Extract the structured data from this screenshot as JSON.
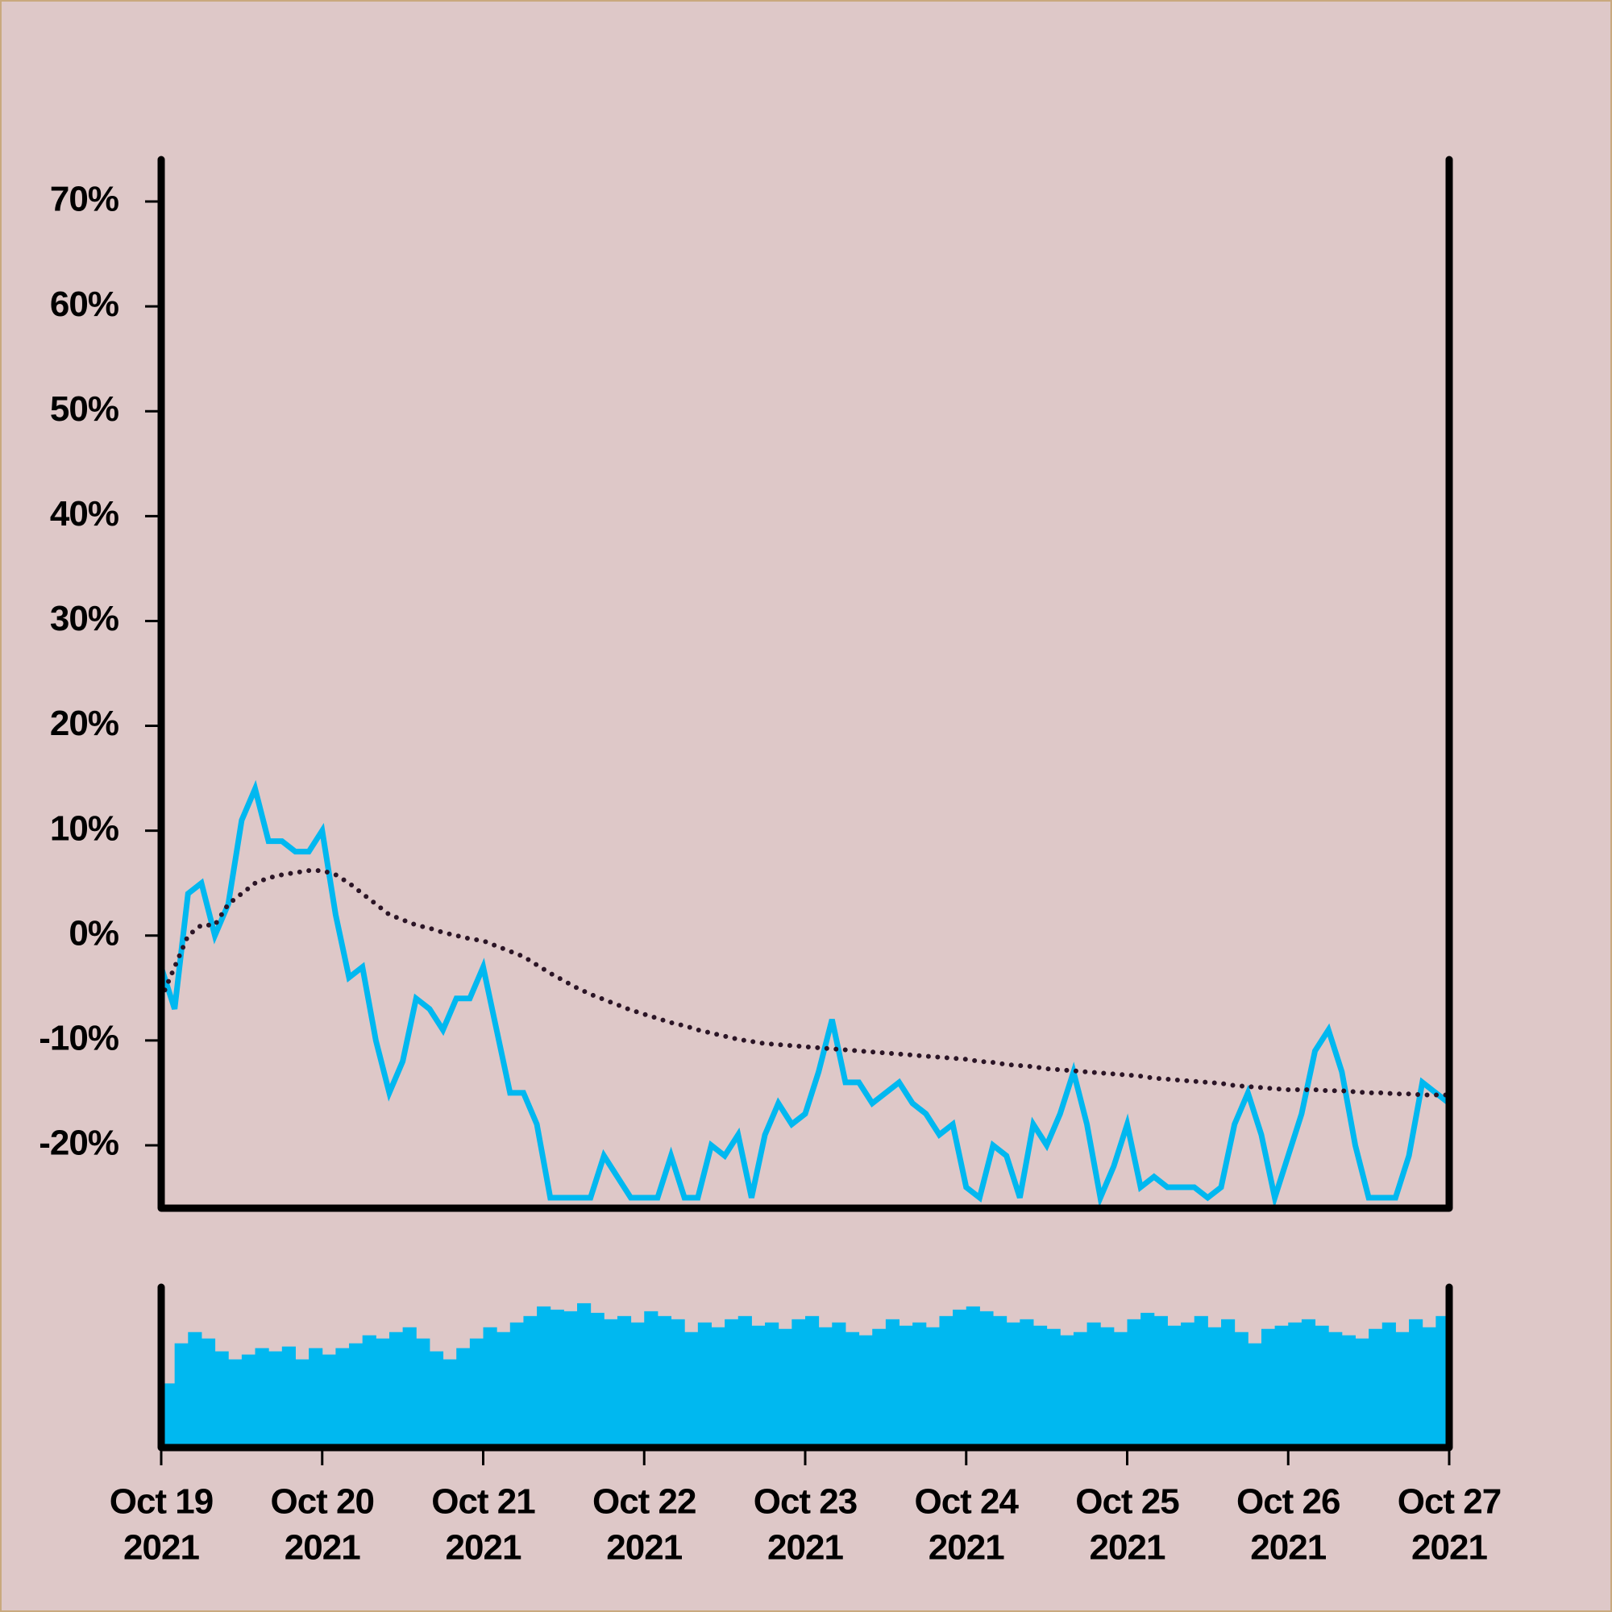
{
  "chart_data": [
    {
      "type": "line",
      "x": [
        0,
        2,
        4,
        6,
        8,
        10,
        12,
        14,
        16,
        18,
        20,
        22,
        24,
        26,
        28,
        30,
        32,
        34,
        36,
        38,
        40,
        42,
        44,
        46,
        48,
        50,
        52,
        54,
        56,
        58,
        60,
        62,
        64,
        66,
        68,
        70,
        72,
        74,
        76,
        78,
        80,
        82,
        84,
        86,
        88,
        90,
        92,
        94,
        96,
        98,
        100,
        102,
        104,
        106,
        108,
        110,
        112,
        114,
        116,
        118,
        120,
        122,
        124,
        126,
        128,
        130,
        132,
        134,
        136,
        138,
        140,
        142,
        144,
        146,
        148,
        150,
        152,
        154,
        156,
        158,
        160,
        162,
        164,
        166,
        168,
        170,
        172,
        174,
        176,
        178,
        180,
        182,
        184,
        186,
        188,
        190,
        192
      ],
      "xlim": [
        0,
        192
      ],
      "ylim": [
        -26,
        74
      ],
      "yticks": [
        {
          "value": -20,
          "label": "-20%"
        },
        {
          "value": -10,
          "label": "-10%"
        },
        {
          "value": 0,
          "label": "0%"
        },
        {
          "value": 10,
          "label": "10%"
        },
        {
          "value": 20,
          "label": "20%"
        },
        {
          "value": 30,
          "label": "30%"
        },
        {
          "value": 40,
          "label": "40%"
        },
        {
          "value": 50,
          "label": "50%"
        },
        {
          "value": 60,
          "label": "60%"
        },
        {
          "value": 70,
          "label": "70%"
        }
      ],
      "series": [
        {
          "color": "#00b8f0",
          "line_style": "solid",
          "values": [
            -3,
            -7,
            4,
            5,
            0,
            3,
            11,
            14,
            9,
            9,
            8,
            8,
            10,
            2,
            -4,
            -3,
            -10,
            -15,
            -12,
            -6,
            -7,
            -9,
            -6,
            -6,
            -3,
            -9,
            -15,
            -15,
            -18,
            -25,
            -25,
            -25,
            -25,
            -21,
            -23,
            -25,
            -25,
            -25,
            -21,
            -25,
            -25,
            -20,
            -21,
            -19,
            -25,
            -19,
            -16,
            -18,
            -17,
            -13,
            -8,
            -14,
            -14,
            -16,
            -15,
            -14,
            -16,
            -17,
            -19,
            -18,
            -24,
            -25,
            -20,
            -21,
            -25,
            -18,
            -20,
            -17,
            -13,
            -18,
            -25,
            -22,
            -18,
            -24,
            -23,
            -24,
            -24,
            -24,
            -25,
            -24,
            -18,
            -15,
            -19,
            -25,
            -21,
            -17,
            -11,
            -9,
            -13,
            -20,
            -25,
            -25,
            -25,
            -21,
            -14,
            -15,
            -16
          ]
        },
        {
          "color": "#2b1526",
          "line_style": "dotted",
          "values": [
            -6,
            -3,
            0,
            1,
            1,
            3,
            4,
            5,
            5.5,
            5.8,
            6,
            6.2,
            6.2,
            5.8,
            5,
            4,
            3,
            2,
            1.5,
            1,
            0.7,
            0.3,
            0,
            -0.3,
            -0.5,
            -1,
            -1.5,
            -2,
            -2.8,
            -3.6,
            -4.3,
            -5,
            -5.6,
            -6.1,
            -6.6,
            -7.1,
            -7.5,
            -7.9,
            -8.3,
            -8.6,
            -9,
            -9.3,
            -9.6,
            -9.9,
            -10.1,
            -10.3,
            -10.4,
            -10.5,
            -10.6,
            -10.7,
            -10.8,
            -10.9,
            -11,
            -11.1,
            -11.2,
            -11.3,
            -11.4,
            -11.5,
            -11.6,
            -11.7,
            -11.8,
            -12,
            -12.1,
            -12.3,
            -12.4,
            -12.5,
            -12.7,
            -12.8,
            -12.9,
            -13,
            -13.1,
            -13.2,
            -13.3,
            -13.4,
            -13.6,
            -13.7,
            -13.8,
            -13.9,
            -14,
            -14.1,
            -14.3,
            -14.4,
            -14.5,
            -14.6,
            -14.7,
            -14.7,
            -14.7,
            -14.8,
            -14.8,
            -14.9,
            -15,
            -15,
            -15.1,
            -15.1,
            -15.2,
            -15.2,
            -15.2
          ]
        }
      ]
    },
    {
      "type": "bar",
      "color": "#00b8f0",
      "ylim": [
        0,
        100
      ],
      "values": [
        40,
        65,
        72,
        68,
        60,
        55,
        58,
        62,
        60,
        63,
        55,
        62,
        58,
        62,
        65,
        70,
        68,
        72,
        75,
        68,
        60,
        55,
        62,
        68,
        75,
        72,
        78,
        82,
        88,
        86,
        85,
        90,
        84,
        80,
        82,
        78,
        85,
        82,
        80,
        72,
        78,
        75,
        80,
        82,
        76,
        78,
        74,
        80,
        82,
        75,
        78,
        72,
        70,
        74,
        80,
        76,
        78,
        75,
        82,
        86,
        88,
        85,
        82,
        78,
        80,
        76,
        74,
        70,
        72,
        78,
        75,
        72,
        80,
        84,
        82,
        76,
        78,
        82,
        75,
        80,
        72,
        65,
        74,
        76,
        78,
        80,
        76,
        72,
        70,
        68,
        74,
        78,
        72,
        80,
        75,
        82
      ],
      "xticks": [
        {
          "value": 0,
          "label": [
            "Oct 19",
            "2021"
          ]
        },
        {
          "value": 24,
          "label": [
            "Oct 20",
            "2021"
          ]
        },
        {
          "value": 48,
          "label": [
            "Oct 21",
            "2021"
          ]
        },
        {
          "value": 72,
          "label": [
            "Oct 22",
            "2021"
          ]
        },
        {
          "value": 96,
          "label": [
            "Oct 23",
            "2021"
          ]
        },
        {
          "value": 120,
          "label": [
            "Oct 24",
            "2021"
          ]
        },
        {
          "value": 144,
          "label": [
            "Oct 25",
            "2021"
          ]
        },
        {
          "value": 168,
          "label": [
            "Oct 26",
            "2021"
          ]
        },
        {
          "value": 192,
          "label": [
            "Oct 27",
            "2021"
          ]
        }
      ]
    }
  ]
}
